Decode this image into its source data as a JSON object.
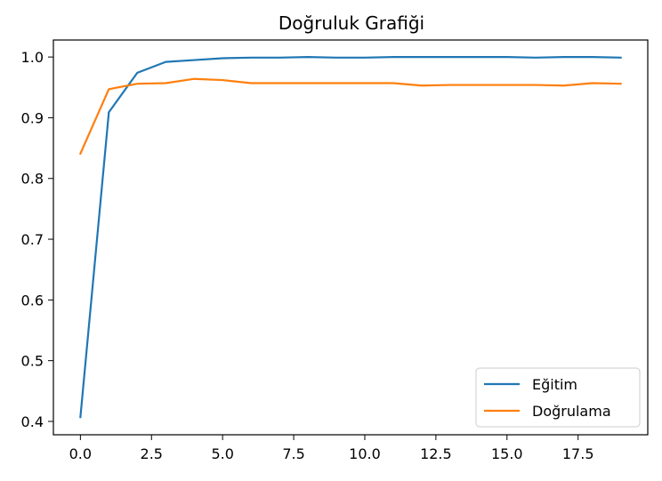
{
  "chart_data": {
    "type": "line",
    "title": "Doğruluk Grafiği",
    "xlabel": "",
    "ylabel": "",
    "xlim": [
      -0.95,
      19.95
    ],
    "ylim": [
      0.378,
      1.028
    ],
    "xticks": [
      0,
      2.5,
      5,
      7.5,
      10,
      12.5,
      15,
      17.5
    ],
    "xtick_labels": [
      "0.0",
      "2.5",
      "5.0",
      "7.5",
      "10.0",
      "12.5",
      "15.0",
      "17.5"
    ],
    "yticks": [
      0.4,
      0.5,
      0.6,
      0.7,
      0.8,
      0.9,
      1.0
    ],
    "ytick_labels": [
      "0.4",
      "0.5",
      "0.6",
      "0.7",
      "0.8",
      "0.9",
      "1.0"
    ],
    "grid": false,
    "legend_position": "lower-right",
    "x": [
      0,
      1,
      2,
      3,
      4,
      5,
      6,
      7,
      8,
      9,
      10,
      11,
      12,
      13,
      14,
      15,
      16,
      17,
      18,
      19
    ],
    "series": [
      {
        "name": "Eğitim",
        "color": "#1f77b4",
        "values": [
          0.407,
          0.909,
          0.974,
          0.992,
          0.995,
          0.998,
          0.999,
          0.999,
          1.0,
          0.999,
          0.999,
          1.0,
          1.0,
          1.0,
          1.0,
          1.0,
          0.999,
          1.0,
          1.0,
          0.999
        ]
      },
      {
        "name": "Doğrulama",
        "color": "#ff7f0e",
        "values": [
          0.841,
          0.947,
          0.956,
          0.957,
          0.964,
          0.962,
          0.957,
          0.957,
          0.957,
          0.957,
          0.957,
          0.957,
          0.953,
          0.954,
          0.954,
          0.954,
          0.954,
          0.953,
          0.957,
          0.956
        ]
      }
    ]
  }
}
